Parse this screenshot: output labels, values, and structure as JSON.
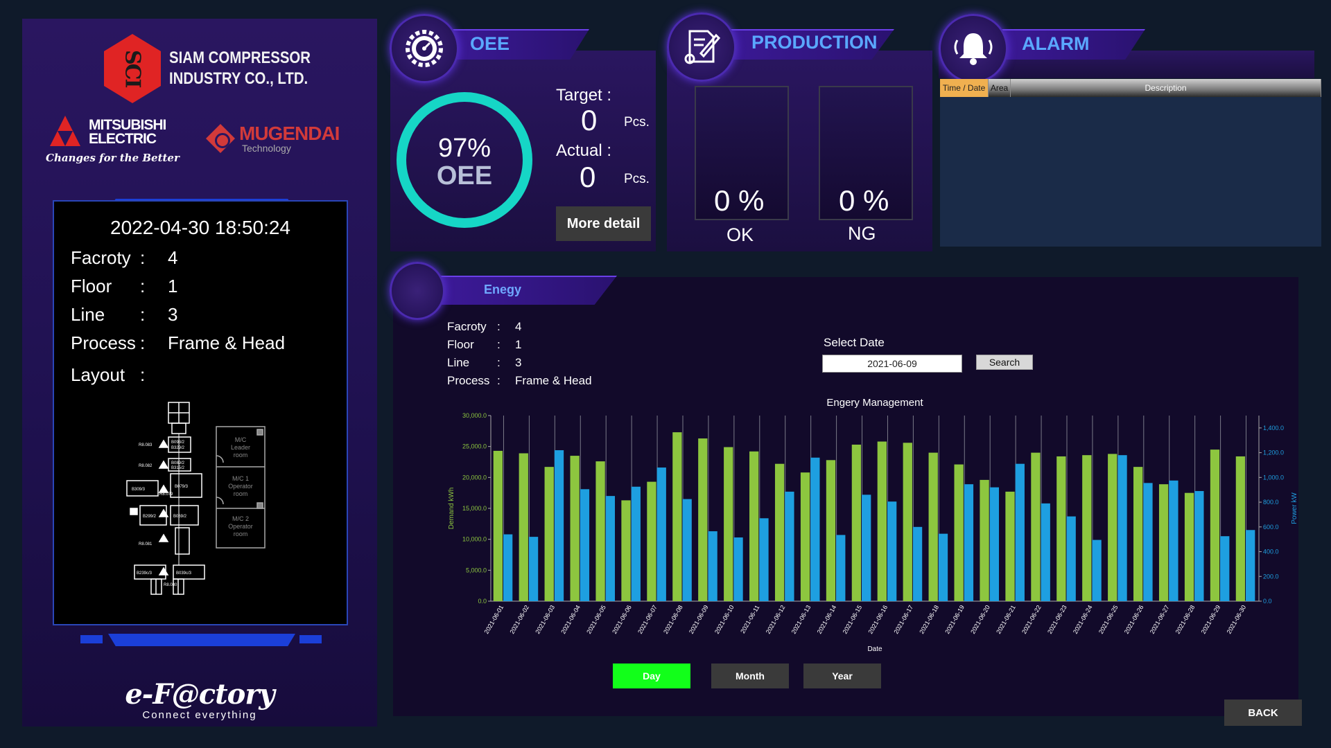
{
  "branding": {
    "sci_initials": "SCI",
    "company_line1": "SIAM COMPRESSOR",
    "company_line2": "INDUSTRY CO., LTD.",
    "mitsubishi_line1": "MITSUBISHI",
    "mitsubishi_line2": "ELECTRIC",
    "mitsubishi_tagline": "Changes for the Better",
    "mugendai_name": "MUGENDAI",
    "mugendai_sub": "Technology",
    "efactory_logo": "e-F@ctory",
    "efactory_sub": "Connect everything"
  },
  "info": {
    "datetime": "2022-04-30 18:50:24",
    "rows": [
      {
        "label": "Facroty",
        "value": "4"
      },
      {
        "label": "Floor",
        "value": "1"
      },
      {
        "label": "Line",
        "value": "3"
      },
      {
        "label": "Process",
        "value": "Frame & Head"
      },
      {
        "label": "Layout",
        "value": ""
      }
    ],
    "colon": ":"
  },
  "layout_map": {
    "labels": [
      "B093/2",
      "B329/2",
      "B089/2",
      "B315/2",
      "B309/3",
      "B079/3",
      "B299/2",
      "B069/2",
      "B239c/3",
      "B039c/3",
      "R8.083",
      "R8.082",
      "R8.081",
      "R8.080",
      "R8.079"
    ],
    "rooms": [
      {
        "line1": "M/C",
        "line2": "Leader",
        "line3": "room"
      },
      {
        "line1": "M/C 1",
        "line2": "Operator",
        "line3": "room"
      },
      {
        "line1": "M/C 2",
        "line2": "Operator",
        "line3": "room"
      }
    ]
  },
  "oee": {
    "title": "OEE",
    "percent": "97%",
    "label": "OEE",
    "percent_value": 97,
    "target_label": "Target :",
    "target_value": "0",
    "actual_label": "Actual :",
    "actual_value": "0",
    "unit": "Pcs.",
    "more_detail": "More detail"
  },
  "production": {
    "title": "PRODUCTION",
    "ok_pct": "0 %",
    "ok_label": "OK",
    "ng_pct": "0 %",
    "ng_label": "NG"
  },
  "alarm": {
    "title": "ALARM",
    "columns": [
      "Time / Date",
      "Area",
      "Description"
    ]
  },
  "energy": {
    "title": "Enegy",
    "info": [
      {
        "label": "Facroty",
        "value": "4"
      },
      {
        "label": "Floor",
        "value": "1"
      },
      {
        "label": "Line",
        "value": "3"
      },
      {
        "label": "Process",
        "value": "Frame & Head"
      }
    ],
    "colon": ":",
    "select_date_label": "Select Date",
    "date_value": "2021-06-09",
    "search_label": "Search",
    "ranges": [
      "Day",
      "Month",
      "Year"
    ],
    "active_range": "Day",
    "back_label": "BACK"
  },
  "chart_data": {
    "type": "bar",
    "title": "Engery Management",
    "xlabel": "Date",
    "ylabel": "Demand kWh",
    "y2label": "Power kW",
    "categories": [
      "2021-06-01",
      "2021-06-02",
      "2021-06-03",
      "2021-06-04",
      "2021-06-05",
      "2021-06-06",
      "2021-06-07",
      "2021-06-08",
      "2021-06-09",
      "2021-06-10",
      "2021-06-11",
      "2021-06-12",
      "2021-06-13",
      "2021-06-14",
      "2021-06-15",
      "2021-06-16",
      "2021-06-17",
      "2021-06-18",
      "2021-06-19",
      "2021-06-20",
      "2021-06-21",
      "2021-06-22",
      "2021-06-23",
      "2021-06-24",
      "2021-06-25",
      "2021-06-26",
      "2021-06-27",
      "2021-06-28",
      "2021-06-29",
      "2021-06-30"
    ],
    "ylim": [
      0,
      30000
    ],
    "y2lim": [
      0,
      1500
    ],
    "yticks": [
      "0.0",
      "5,000.0",
      "10,000.0",
      "15,000.0",
      "20,000.0",
      "25,000.0",
      "30,000.0"
    ],
    "y2ticks": [
      "0.0",
      "200.0",
      "400.0",
      "600.0",
      "800.0",
      "1,000.0",
      "1,200.0",
      "1,400.0"
    ],
    "series": [
      {
        "axis": "left",
        "color": "#8dc63f",
        "values": [
          24300,
          23900,
          21700,
          23500,
          22600,
          16300,
          19300,
          27300,
          26300,
          24900,
          24200,
          22200,
          20800,
          22800,
          25300,
          25800,
          25600,
          24000,
          22100,
          19600,
          17700,
          24000,
          23400,
          23600,
          23800,
          21700,
          18900,
          17500,
          24500,
          23400
        ]
      },
      {
        "axis": "right",
        "color": "#1e9fe0",
        "values": [
          540,
          520,
          1220,
          905,
          850,
          925,
          1080,
          825,
          565,
          515,
          670,
          885,
          1160,
          535,
          860,
          805,
          600,
          545,
          945,
          920,
          1110,
          790,
          685,
          495,
          1180,
          955,
          975,
          890,
          525,
          575
        ]
      }
    ],
    "grid": true
  }
}
